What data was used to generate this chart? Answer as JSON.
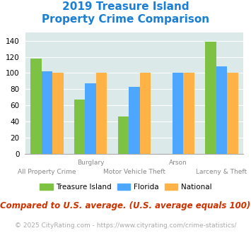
{
  "title_line1": "2019 Treasure Island",
  "title_line2": "Property Crime Comparison",
  "categories": [
    "All Property Crime",
    "Burglary",
    "Motor Vehicle Theft",
    "Arson",
    "Larceny & Theft"
  ],
  "treasure_island": [
    118,
    67,
    46,
    0,
    139
  ],
  "florida": [
    102,
    87,
    83,
    100,
    108
  ],
  "national": [
    100,
    100,
    100,
    100,
    100
  ],
  "colors": {
    "treasure_island": "#7dc242",
    "florida": "#4da6ff",
    "national": "#ffb347"
  },
  "ylim": [
    0,
    150
  ],
  "yticks": [
    0,
    20,
    40,
    60,
    80,
    100,
    120,
    140
  ],
  "background_color": "#dce9e9",
  "title_color": "#1a7fd4",
  "subtitle_note": "Compared to U.S. average. (U.S. average equals 100)",
  "copyright": "© 2025 CityRating.com - https://www.cityrating.com/crime-statistics/",
  "legend_labels": [
    "Treasure Island",
    "Florida",
    "National"
  ],
  "bar_width": 0.25,
  "title_fontsize": 11,
  "note_fontsize": 8.5,
  "copyright_fontsize": 6.5
}
